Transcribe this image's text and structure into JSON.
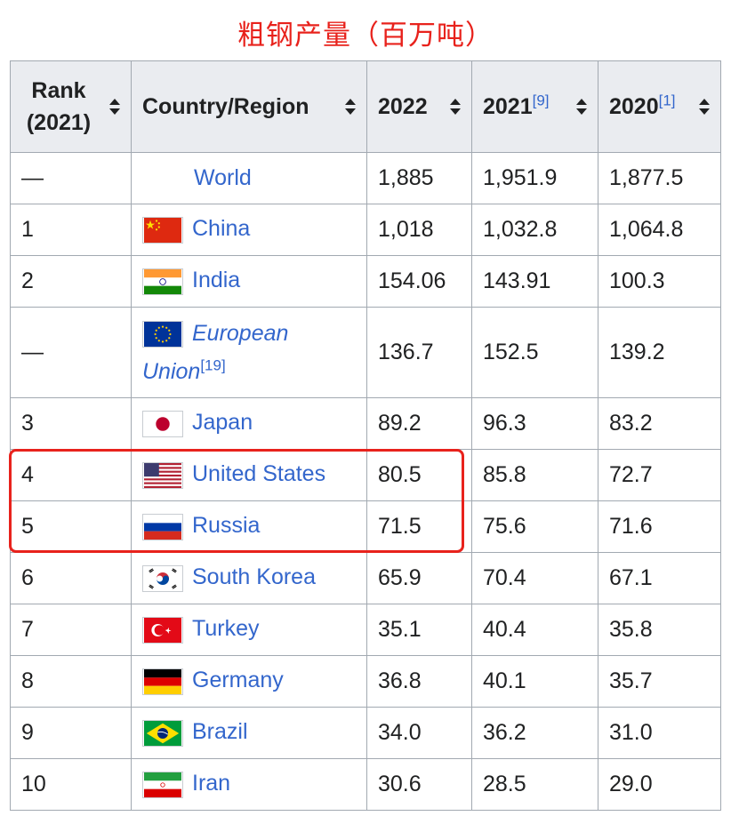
{
  "title": "粗钢产量（百万吨）",
  "columns": {
    "rank": "Rank (2021)",
    "country": "Country/Region",
    "y2022": "2022",
    "y2021": "2021",
    "y2021_ref": "[9]",
    "y2020": "2020",
    "y2020_ref": "[1]"
  },
  "rows": [
    {
      "rank": "—",
      "country": "World",
      "v2022": "1,885",
      "v2021": "1,951.9",
      "v2020": "1,877.5"
    },
    {
      "rank": "1",
      "country": "China",
      "flag": "china-flag",
      "v2022": "1,018",
      "v2021": "1,032.8",
      "v2020": "1,064.8"
    },
    {
      "rank": "2",
      "country": "India",
      "flag": "india-flag",
      "v2022": "154.06",
      "v2021": "143.91",
      "v2020": "100.3"
    },
    {
      "rank": "—",
      "country_line1": "European",
      "country_line2": "Union",
      "country_ref": "[19]",
      "flag": "eu-flag",
      "v2022": "136.7",
      "v2021": "152.5",
      "v2020": "139.2"
    },
    {
      "rank": "3",
      "country": "Japan",
      "flag": "japan-flag",
      "v2022": "89.2",
      "v2021": "96.3",
      "v2020": "83.2"
    },
    {
      "rank": "4",
      "country": "United States",
      "flag": "usa-flag",
      "v2022": "80.5",
      "v2021": "85.8",
      "v2020": "72.7"
    },
    {
      "rank": "5",
      "country": "Russia",
      "flag": "russia-flag",
      "v2022": "71.5",
      "v2021": "75.6",
      "v2020": "71.6"
    },
    {
      "rank": "6",
      "country": "South Korea",
      "flag": "south-korea-flag",
      "v2022": "65.9",
      "v2021": "70.4",
      "v2020": "67.1"
    },
    {
      "rank": "7",
      "country": "Turkey",
      "flag": "turkey-flag",
      "v2022": "35.1",
      "v2021": "40.4",
      "v2020": "35.8"
    },
    {
      "rank": "8",
      "country": "Germany",
      "flag": "germany-flag",
      "v2022": "36.8",
      "v2021": "40.1",
      "v2020": "35.7"
    },
    {
      "rank": "9",
      "country": "Brazil",
      "flag": "brazil-flag",
      "v2022": "34.0",
      "v2021": "36.2",
      "v2020": "31.0"
    },
    {
      "rank": "10",
      "country": "Iran",
      "flag": "iran-flag",
      "v2022": "30.6",
      "v2021": "28.5",
      "v2020": "29.0"
    }
  ],
  "colors": {
    "title": "#e8221c",
    "link": "#3366cc",
    "header_bg": "#eaecf0",
    "border": "#a2a9b1",
    "highlight": "#e8221c"
  }
}
